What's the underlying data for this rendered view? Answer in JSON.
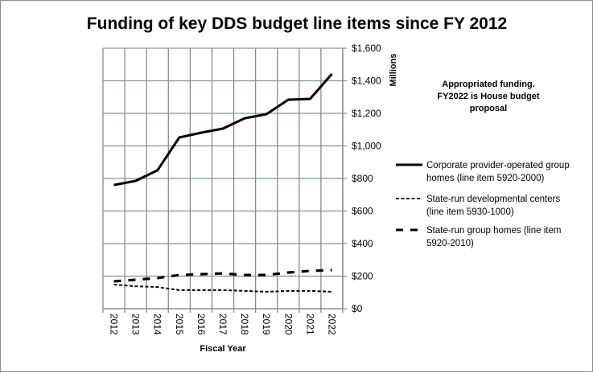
{
  "chart_data": {
    "type": "line",
    "title": "Funding of key DDS budget line items since FY 2012",
    "xlabel": "Fiscal Year",
    "ylabel": "Millions",
    "categories": [
      "2012",
      "2013",
      "2014",
      "2015",
      "2016",
      "2017",
      "2018",
      "2019",
      "2020",
      "2021",
      "2022"
    ],
    "ylim": [
      0,
      1600
    ],
    "y_ticks": [
      0,
      200,
      400,
      600,
      800,
      1000,
      1200,
      1400,
      1600
    ],
    "y_tick_labels": [
      "$0",
      "$200",
      "$400",
      "$600",
      "$800",
      "$1,000",
      "$1,200",
      "$1,400",
      "$1,600"
    ],
    "grid": true,
    "y_axis_side": "right",
    "legend_position": "right",
    "annotation": [
      "Appropriated funding.",
      "FY2022 is House budget",
      "proposal"
    ],
    "series": [
      {
        "name": "Corporate provider-operated group homes (line item 5920-2000)",
        "legend_lines": [
          "Corporate provider-operated group",
          "homes (line item 5920-2000)"
        ],
        "style": "solid",
        "color": "#000000",
        "values": [
          760,
          785,
          850,
          1052,
          1081,
          1106,
          1170,
          1195,
          1284,
          1289,
          1442
        ]
      },
      {
        "name": "State-run developmental centers (line item 5930-1000)",
        "legend_lines": [
          "State-run developmental centers",
          "(line item 5930-1000)"
        ],
        "style": "short-dash",
        "color": "#000000",
        "values": [
          148,
          138,
          133,
          114,
          114,
          114,
          109,
          104,
          109,
          109,
          104
        ]
      },
      {
        "name": "State-run group homes (line item 5920-2010)",
        "legend_lines": [
          "State-run group homes (line item",
          "5920-2010)"
        ],
        "style": "long-dash",
        "color": "#000000",
        "values": [
          168,
          178,
          188,
          207,
          212,
          217,
          207,
          207,
          222,
          232,
          237
        ]
      }
    ]
  },
  "colors": {
    "h_grid": "#7d93ac",
    "v_grid": "#8a8a8a",
    "axis": "#868686",
    "line": "#000000"
  }
}
